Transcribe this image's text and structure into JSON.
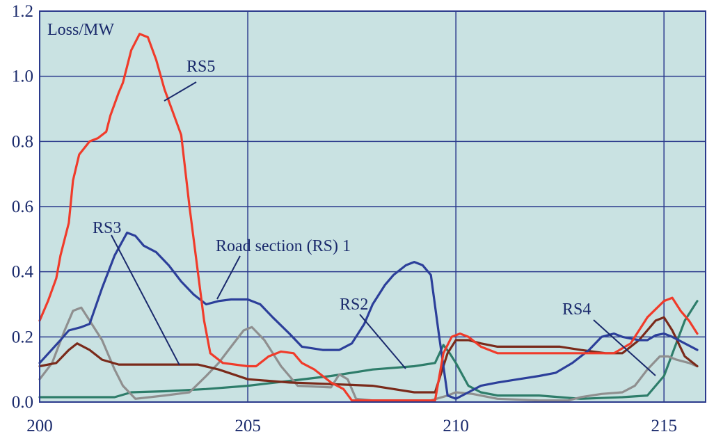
{
  "chart_data": {
    "type": "line",
    "ylabel": "Loss/MW",
    "xlabel": "",
    "xlim": [
      200,
      216
    ],
    "ylim": [
      0,
      1.2
    ],
    "x_ticks": [
      200,
      205,
      210,
      215
    ],
    "x_tick_labels": [
      "200",
      "205",
      "210",
      "215"
    ],
    "y_ticks": [
      0,
      0.2,
      0.4,
      0.6,
      0.8,
      1.0,
      1.2
    ],
    "y_tick_labels": [
      "0.0",
      "0.2",
      "0.4",
      "0.6",
      "0.8",
      "1.0",
      "1.2"
    ],
    "grid": true,
    "background_color": "#c9e2e2",
    "grid_color": "#2b3a8c",
    "series": [
      {
        "name": "Road section (RS) 1",
        "color": "#2c3f9a",
        "points": [
          [
            200.0,
            0.12
          ],
          [
            200.5,
            0.19
          ],
          [
            200.7,
            0.22
          ],
          [
            201.0,
            0.23
          ],
          [
            201.2,
            0.24
          ],
          [
            201.5,
            0.35
          ],
          [
            201.8,
            0.45
          ],
          [
            202.1,
            0.52
          ],
          [
            202.3,
            0.51
          ],
          [
            202.5,
            0.48
          ],
          [
            202.8,
            0.46
          ],
          [
            203.1,
            0.42
          ],
          [
            203.4,
            0.37
          ],
          [
            203.7,
            0.33
          ],
          [
            204.0,
            0.3
          ],
          [
            204.3,
            0.31
          ],
          [
            204.6,
            0.315
          ],
          [
            205.0,
            0.315
          ],
          [
            205.3,
            0.3
          ],
          [
            205.6,
            0.26
          ],
          [
            206.0,
            0.21
          ],
          [
            206.3,
            0.17
          ],
          [
            206.8,
            0.16
          ],
          [
            207.2,
            0.16
          ],
          [
            207.5,
            0.18
          ],
          [
            207.8,
            0.24
          ],
          [
            208.0,
            0.3
          ],
          [
            208.3,
            0.36
          ],
          [
            208.5,
            0.39
          ],
          [
            208.8,
            0.42
          ],
          [
            209.0,
            0.43
          ],
          [
            209.2,
            0.42
          ],
          [
            209.4,
            0.39
          ],
          [
            209.6,
            0.2
          ],
          [
            209.8,
            0.02
          ],
          [
            210.0,
            0.01
          ],
          [
            210.3,
            0.03
          ],
          [
            210.6,
            0.05
          ],
          [
            211.0,
            0.06
          ],
          [
            211.5,
            0.07
          ],
          [
            212.0,
            0.08
          ],
          [
            212.4,
            0.09
          ],
          [
            212.8,
            0.12
          ],
          [
            213.2,
            0.16
          ],
          [
            213.5,
            0.2
          ],
          [
            213.8,
            0.21
          ],
          [
            214.0,
            0.2
          ],
          [
            214.4,
            0.19
          ],
          [
            214.6,
            0.19
          ],
          [
            214.8,
            0.205
          ],
          [
            215.0,
            0.21
          ],
          [
            215.2,
            0.2
          ],
          [
            215.5,
            0.18
          ],
          [
            215.8,
            0.16
          ]
        ]
      },
      {
        "name": "RS2",
        "color": "#2e7d6a",
        "points": [
          [
            200.0,
            0.015
          ],
          [
            201.0,
            0.015
          ],
          [
            201.8,
            0.015
          ],
          [
            202.2,
            0.03
          ],
          [
            203.0,
            0.033
          ],
          [
            204.0,
            0.04
          ],
          [
            205.0,
            0.05
          ],
          [
            206.0,
            0.065
          ],
          [
            207.0,
            0.08
          ],
          [
            208.0,
            0.1
          ],
          [
            209.0,
            0.11
          ],
          [
            209.5,
            0.12
          ],
          [
            209.7,
            0.175
          ],
          [
            209.85,
            0.15
          ],
          [
            210.0,
            0.12
          ],
          [
            210.3,
            0.05
          ],
          [
            210.6,
            0.03
          ],
          [
            211.0,
            0.02
          ],
          [
            212.0,
            0.02
          ],
          [
            212.5,
            0.015
          ],
          [
            213.0,
            0.01
          ],
          [
            214.0,
            0.015
          ],
          [
            214.6,
            0.02
          ],
          [
            215.0,
            0.08
          ],
          [
            215.5,
            0.25
          ],
          [
            215.8,
            0.31
          ]
        ]
      },
      {
        "name": "RS3",
        "color": "#7a2a1a",
        "points": [
          [
            200.0,
            0.11
          ],
          [
            200.4,
            0.12
          ],
          [
            200.7,
            0.16
          ],
          [
            200.9,
            0.18
          ],
          [
            201.2,
            0.16
          ],
          [
            201.5,
            0.13
          ],
          [
            201.9,
            0.115
          ],
          [
            202.5,
            0.115
          ],
          [
            203.0,
            0.115
          ],
          [
            203.8,
            0.115
          ],
          [
            204.3,
            0.1
          ],
          [
            205.0,
            0.07
          ],
          [
            206.0,
            0.06
          ],
          [
            207.0,
            0.055
          ],
          [
            208.0,
            0.05
          ],
          [
            209.0,
            0.03
          ],
          [
            209.5,
            0.03
          ],
          [
            209.8,
            0.15
          ],
          [
            210.0,
            0.19
          ],
          [
            210.3,
            0.19
          ],
          [
            210.6,
            0.18
          ],
          [
            211.0,
            0.17
          ],
          [
            212.0,
            0.17
          ],
          [
            212.5,
            0.17
          ],
          [
            213.0,
            0.16
          ],
          [
            213.6,
            0.15
          ],
          [
            214.0,
            0.15
          ],
          [
            214.4,
            0.19
          ],
          [
            214.8,
            0.25
          ],
          [
            215.0,
            0.26
          ],
          [
            215.2,
            0.22
          ],
          [
            215.5,
            0.14
          ],
          [
            215.8,
            0.11
          ]
        ]
      },
      {
        "name": "RS4",
        "color": "#8f8f8f",
        "points": [
          [
            200.0,
            0.07
          ],
          [
            200.3,
            0.12
          ],
          [
            200.6,
            0.22
          ],
          [
            200.8,
            0.28
          ],
          [
            201.0,
            0.29
          ],
          [
            201.2,
            0.25
          ],
          [
            201.5,
            0.19
          ],
          [
            201.8,
            0.1
          ],
          [
            202.0,
            0.05
          ],
          [
            202.3,
            0.01
          ],
          [
            203.0,
            0.02
          ],
          [
            203.6,
            0.03
          ],
          [
            204.0,
            0.08
          ],
          [
            204.3,
            0.12
          ],
          [
            204.6,
            0.17
          ],
          [
            204.9,
            0.22
          ],
          [
            205.1,
            0.23
          ],
          [
            205.4,
            0.19
          ],
          [
            205.8,
            0.11
          ],
          [
            206.2,
            0.05
          ],
          [
            207.0,
            0.045
          ],
          [
            207.2,
            0.085
          ],
          [
            207.4,
            0.07
          ],
          [
            207.6,
            0.01
          ],
          [
            208.0,
            0.005
          ],
          [
            209.0,
            0.005
          ],
          [
            209.4,
            0.005
          ],
          [
            209.8,
            0.02
          ],
          [
            210.0,
            0.03
          ],
          [
            210.4,
            0.025
          ],
          [
            211.0,
            0.01
          ],
          [
            212.0,
            0.005
          ],
          [
            212.7,
            0.005
          ],
          [
            213.0,
            0.015
          ],
          [
            213.5,
            0.025
          ],
          [
            214.0,
            0.03
          ],
          [
            214.3,
            0.05
          ],
          [
            214.6,
            0.1
          ],
          [
            214.9,
            0.14
          ],
          [
            215.1,
            0.14
          ],
          [
            215.3,
            0.13
          ],
          [
            215.6,
            0.12
          ],
          [
            215.8,
            0.11
          ]
        ]
      },
      {
        "name": "RS5",
        "color": "#f03b2a",
        "points": [
          [
            200.0,
            0.25
          ],
          [
            200.2,
            0.31
          ],
          [
            200.4,
            0.38
          ],
          [
            200.5,
            0.45
          ],
          [
            200.7,
            0.55
          ],
          [
            200.8,
            0.68
          ],
          [
            200.95,
            0.76
          ],
          [
            201.2,
            0.8
          ],
          [
            201.4,
            0.81
          ],
          [
            201.6,
            0.83
          ],
          [
            201.7,
            0.88
          ],
          [
            201.9,
            0.95
          ],
          [
            202.0,
            0.98
          ],
          [
            202.2,
            1.08
          ],
          [
            202.4,
            1.13
          ],
          [
            202.6,
            1.12
          ],
          [
            202.8,
            1.05
          ],
          [
            203.0,
            0.96
          ],
          [
            203.2,
            0.89
          ],
          [
            203.4,
            0.82
          ],
          [
            203.6,
            0.6
          ],
          [
            203.8,
            0.4
          ],
          [
            203.95,
            0.25
          ],
          [
            204.1,
            0.15
          ],
          [
            204.4,
            0.12
          ],
          [
            205.0,
            0.11
          ],
          [
            205.2,
            0.11
          ],
          [
            205.5,
            0.14
          ],
          [
            205.8,
            0.155
          ],
          [
            206.1,
            0.15
          ],
          [
            206.3,
            0.12
          ],
          [
            206.6,
            0.1
          ],
          [
            207.0,
            0.06
          ],
          [
            207.3,
            0.04
          ],
          [
            207.5,
            0.005
          ],
          [
            208.5,
            0.005
          ],
          [
            209.5,
            0.005
          ],
          [
            209.7,
            0.15
          ],
          [
            209.9,
            0.2
          ],
          [
            210.1,
            0.21
          ],
          [
            210.3,
            0.2
          ],
          [
            210.6,
            0.17
          ],
          [
            211.0,
            0.15
          ],
          [
            212.0,
            0.15
          ],
          [
            213.0,
            0.15
          ],
          [
            213.8,
            0.15
          ],
          [
            214.2,
            0.18
          ],
          [
            214.6,
            0.26
          ],
          [
            215.0,
            0.31
          ],
          [
            215.2,
            0.32
          ],
          [
            215.4,
            0.28
          ],
          [
            215.6,
            0.25
          ],
          [
            215.8,
            0.21
          ]
        ]
      }
    ],
    "annotations": [
      {
        "text": "RS5",
        "series": "RS5"
      },
      {
        "text": "RS3",
        "series": "RS3"
      },
      {
        "text": "Road section (RS) 1",
        "series": "Road section (RS) 1"
      },
      {
        "text": "RS2",
        "series": "RS2"
      },
      {
        "text": "RS4",
        "series": "RS4"
      }
    ]
  }
}
